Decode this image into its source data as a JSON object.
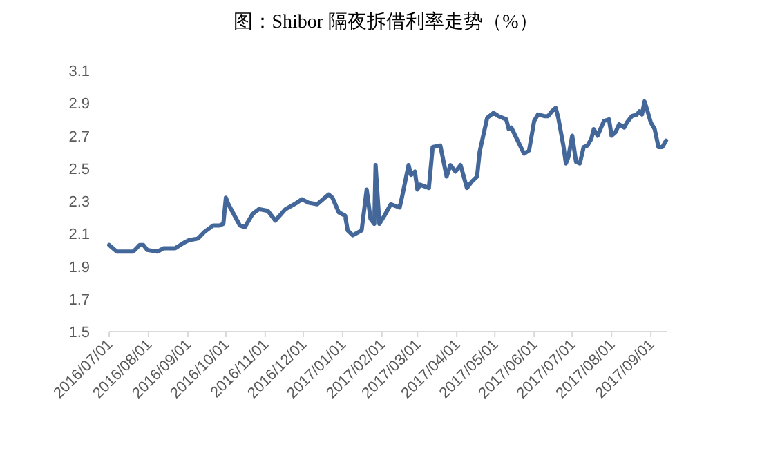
{
  "chart_data": {
    "type": "line",
    "title": "图：Shibor 隔夜拆借利率走势（%）",
    "xlim": [
      "2016-07-01",
      "2017-09-14"
    ],
    "xticks": [
      {
        "value": "2016-07-01",
        "label": "2016/07/01"
      },
      {
        "value": "2016-08-01",
        "label": "2016/08/01"
      },
      {
        "value": "2016-09-01",
        "label": "2016/09/01"
      },
      {
        "value": "2016-10-01",
        "label": "2016/10/01"
      },
      {
        "value": "2016-11-01",
        "label": "2016/11/01"
      },
      {
        "value": "2016-12-01",
        "label": "2016/12/01"
      },
      {
        "value": "2017-01-01",
        "label": "2017/01/01"
      },
      {
        "value": "2017-02-01",
        "label": "2017/02/01"
      },
      {
        "value": "2017-03-01",
        "label": "2017/03/01"
      },
      {
        "value": "2017-04-01",
        "label": "2017/04/01"
      },
      {
        "value": "2017-05-01",
        "label": "2017/05/01"
      },
      {
        "value": "2017-06-01",
        "label": "2017/06/01"
      },
      {
        "value": "2017-07-01",
        "label": "2017/07/01"
      },
      {
        "value": "2017-08-01",
        "label": "2017/08/01"
      },
      {
        "value": "2017-09-01",
        "label": "2017/09/01"
      }
    ],
    "ylim": [
      1.5,
      3.1
    ],
    "yticks": [
      1.5,
      1.7,
      1.9,
      2.1,
      2.3,
      2.5,
      2.7,
      2.9,
      3.1
    ],
    "series": [
      {
        "color": "#44679a",
        "x": [
          "2016-07-01",
          "2016-07-07",
          "2016-07-20",
          "2016-07-25",
          "2016-07-28",
          "2016-07-31",
          "2016-08-08",
          "2016-08-13",
          "2016-08-22",
          "2016-08-28",
          "2016-09-02",
          "2016-09-09",
          "2016-09-14",
          "2016-09-21",
          "2016-09-26",
          "2016-09-29",
          "2016-10-01",
          "2016-10-03",
          "2016-10-12",
          "2016-10-16",
          "2016-10-22",
          "2016-10-27",
          "2016-11-03",
          "2016-11-09",
          "2016-11-17",
          "2016-11-24",
          "2016-11-30",
          "2016-12-05",
          "2016-12-12",
          "2016-12-21",
          "2016-12-24",
          "2016-12-29",
          "2017-01-03",
          "2017-01-05",
          "2017-01-09",
          "2017-01-16",
          "2017-01-20",
          "2017-01-23",
          "2017-01-26",
          "2017-01-27",
          "2017-01-30",
          "2017-02-03",
          "2017-02-08",
          "2017-02-15",
          "2017-02-17",
          "2017-02-22",
          "2017-02-24",
          "2017-02-27",
          "2017-03-01",
          "2017-03-03",
          "2017-03-10",
          "2017-03-13",
          "2017-03-19",
          "2017-03-24",
          "2017-03-27",
          "2017-03-31",
          "2017-04-04",
          "2017-04-09",
          "2017-04-13",
          "2017-04-17",
          "2017-04-19",
          "2017-04-25",
          "2017-04-30",
          "2017-05-04",
          "2017-05-10",
          "2017-05-12",
          "2017-05-14",
          "2017-05-19",
          "2017-05-24",
          "2017-05-28",
          "2017-06-01",
          "2017-06-04",
          "2017-06-09",
          "2017-06-12",
          "2017-06-15",
          "2017-06-18",
          "2017-06-20",
          "2017-06-24",
          "2017-06-26",
          "2017-06-28",
          "2017-07-01",
          "2017-07-04",
          "2017-07-07",
          "2017-07-10",
          "2017-07-13",
          "2017-07-16",
          "2017-07-18",
          "2017-07-21",
          "2017-07-26",
          "2017-07-30",
          "2017-08-01",
          "2017-08-04",
          "2017-08-07",
          "2017-08-11",
          "2017-08-13",
          "2017-08-17",
          "2017-08-21",
          "2017-08-23",
          "2017-08-25",
          "2017-08-27",
          "2017-08-29",
          "2017-09-01",
          "2017-09-04",
          "2017-09-07",
          "2017-09-10",
          "2017-09-13"
        ],
        "values": [
          2.03,
          1.99,
          1.99,
          2.03,
          2.03,
          2.0,
          1.99,
          2.01,
          2.01,
          2.04,
          2.06,
          2.07,
          2.11,
          2.15,
          2.15,
          2.16,
          2.32,
          2.28,
          2.15,
          2.14,
          2.22,
          2.25,
          2.24,
          2.18,
          2.25,
          2.28,
          2.31,
          2.29,
          2.28,
          2.34,
          2.32,
          2.23,
          2.21,
          2.12,
          2.09,
          2.12,
          2.37,
          2.19,
          2.16,
          2.52,
          2.16,
          2.21,
          2.28,
          2.26,
          2.33,
          2.52,
          2.46,
          2.48,
          2.37,
          2.4,
          2.38,
          2.63,
          2.64,
          2.45,
          2.52,
          2.48,
          2.52,
          2.38,
          2.42,
          2.45,
          2.6,
          2.81,
          2.84,
          2.82,
          2.8,
          2.74,
          2.75,
          2.67,
          2.59,
          2.61,
          2.79,
          2.83,
          2.82,
          2.82,
          2.85,
          2.87,
          2.81,
          2.64,
          2.53,
          2.57,
          2.7,
          2.54,
          2.53,
          2.63,
          2.64,
          2.68,
          2.74,
          2.7,
          2.79,
          2.8,
          2.7,
          2.72,
          2.77,
          2.75,
          2.78,
          2.82,
          2.83,
          2.85,
          2.83,
          2.91,
          2.86,
          2.78,
          2.74,
          2.63,
          2.63,
          2.67
        ]
      }
    ]
  }
}
